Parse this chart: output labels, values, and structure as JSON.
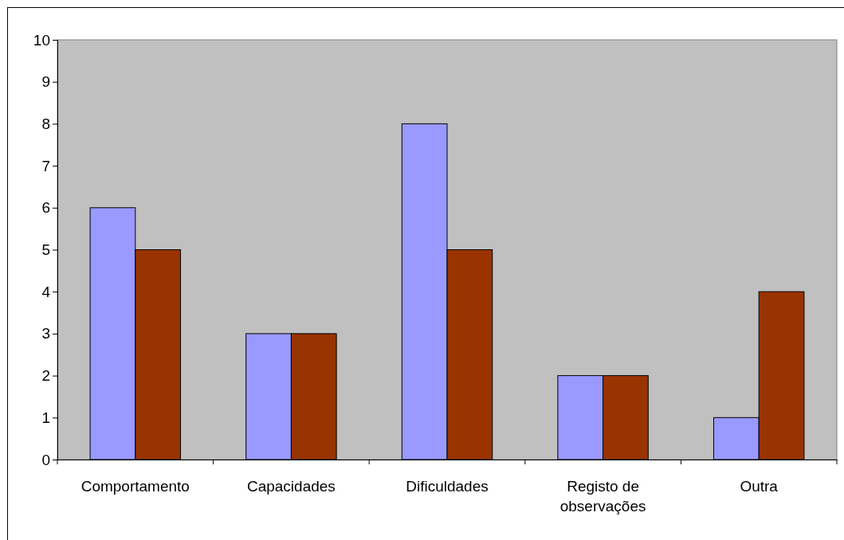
{
  "chart_data": {
    "type": "bar",
    "categories": [
      "Comportamento",
      "Capacidades",
      "Dificuldades",
      "Registo de observações",
      "Outra"
    ],
    "series": [
      {
        "color": "#9999ff",
        "values": [
          6,
          3,
          8,
          2,
          1
        ]
      },
      {
        "color": "#993300",
        "values": [
          5,
          3,
          5,
          2,
          4
        ]
      }
    ],
    "ylim": [
      0,
      10
    ],
    "yticks": [
      0,
      1,
      2,
      3,
      4,
      5,
      6,
      7,
      8,
      9,
      10
    ],
    "grid": false
  }
}
